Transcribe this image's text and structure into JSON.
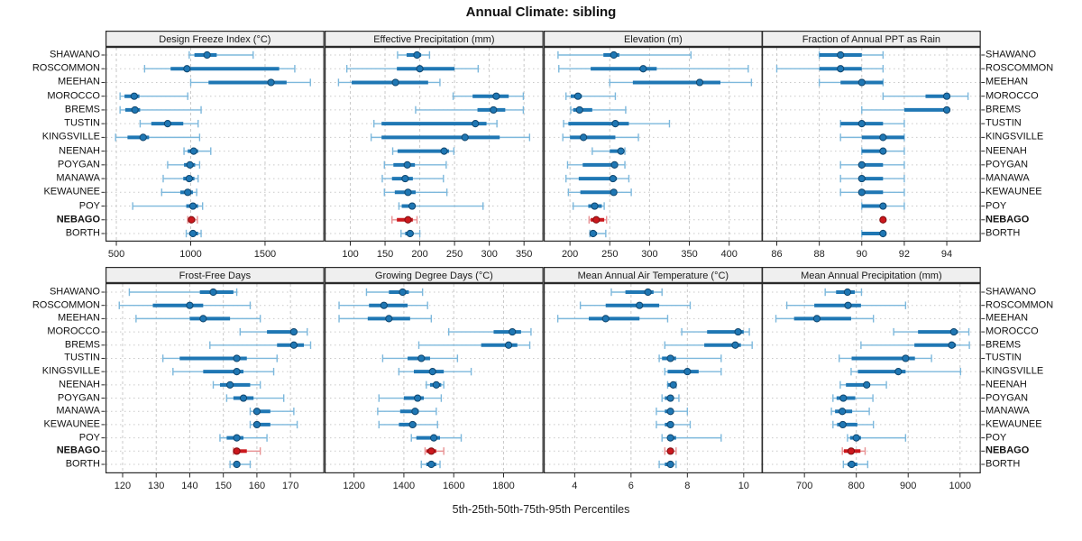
{
  "title": "Annual Climate: sibling",
  "caption": "5th-25th-50th-75th-95th Percentiles",
  "percentile_labels": [
    "5th",
    "25th",
    "50th",
    "75th",
    "95th"
  ],
  "sites": [
    "SHAWANO",
    "ROSCOMMON",
    "MEEHAN",
    "MOROCCO",
    "BREMS",
    "TUSTIN",
    "KINGSVILLE",
    "NEENAH",
    "POYGAN",
    "MANAWA",
    "KEWAUNEE",
    "POY",
    "NEBAGO",
    "BORTH"
  ],
  "highlight_site": "NEBAGO",
  "colors": {
    "series": "#1f77b4",
    "series_light": "#7db8dc",
    "series_dark": "#10466e",
    "highlight": "#cb181d",
    "highlight_light": "#e89193",
    "highlight_dark": "#7f0d10",
    "grid": "#c9c9c9",
    "border": "#2a2a2a",
    "strip_bg": "#efefef",
    "panel_bg": "#ffffff"
  },
  "chart_data": {
    "type": "dotplot-interval",
    "layout": {
      "rows": 2,
      "cols": 4
    },
    "note": "values per site are [p5,p25,p50,p75,p95]",
    "panels": [
      {
        "title": "Design Freeze Index (°C)",
        "ticks": [
          500,
          1000,
          1500
        ],
        "xlim": [
          427,
          1899
        ],
        "values": [
          [
            990,
            1025,
            1110,
            1175,
            1420
          ],
          [
            690,
            865,
            975,
            1595,
            1700
          ],
          [
            1000,
            1120,
            1540,
            1645,
            1805
          ],
          [
            525,
            555,
            620,
            655,
            980
          ],
          [
            525,
            560,
            625,
            660,
            1070
          ],
          [
            660,
            735,
            845,
            950,
            1050
          ],
          [
            495,
            575,
            680,
            720,
            1060
          ],
          [
            955,
            980,
            1020,
            1050,
            1135
          ],
          [
            845,
            955,
            995,
            1030,
            1060
          ],
          [
            815,
            950,
            990,
            1025,
            1050
          ],
          [
            805,
            930,
            980,
            1015,
            1040
          ],
          [
            610,
            970,
            1015,
            1050,
            1080
          ],
          [
            980,
            985,
            1005,
            1030,
            1045
          ],
          [
            970,
            990,
            1015,
            1050,
            1070
          ]
        ]
      },
      {
        "title": "Effective Precipitation (mm)",
        "ticks": [
          100,
          150,
          200,
          250,
          300,
          350
        ],
        "xlim": [
          63,
          378
        ],
        "values": [
          [
            168,
            181,
            196,
            202,
            214
          ],
          [
            95,
            167,
            200,
            250,
            284
          ],
          [
            83,
            102,
            165,
            212,
            229
          ],
          [
            248,
            276,
            310,
            328,
            349
          ],
          [
            194,
            283,
            306,
            323,
            349
          ],
          [
            134,
            145,
            280,
            296,
            311
          ],
          [
            130,
            145,
            265,
            315,
            358
          ],
          [
            161,
            168,
            235,
            242,
            249
          ],
          [
            149,
            162,
            182,
            193,
            238
          ],
          [
            146,
            160,
            179,
            190,
            234
          ],
          [
            149,
            164,
            183,
            194,
            239
          ],
          [
            170,
            174,
            189,
            191,
            291
          ],
          [
            160,
            167,
            183,
            190,
            196
          ],
          [
            173,
            179,
            186,
            191,
            200
          ]
        ]
      },
      {
        "title": "Elevation (m)",
        "ticks": [
          200,
          250,
          300,
          350,
          400
        ],
        "xlim": [
          167,
          442
        ],
        "values": [
          [
            185,
            242,
            255,
            262,
            352
          ],
          [
            186,
            226,
            292,
            309,
            424
          ],
          [
            250,
            279,
            363,
            389,
            428
          ],
          [
            195,
            201,
            210,
            215,
            257
          ],
          [
            201,
            204,
            212,
            228,
            270
          ],
          [
            192,
            198,
            257,
            274,
            325
          ],
          [
            191,
            200,
            217,
            257,
            286
          ],
          [
            228,
            250,
            264,
            268,
            269
          ],
          [
            197,
            216,
            256,
            260,
            269
          ],
          [
            195,
            211,
            254,
            259,
            274
          ],
          [
            198,
            213,
            255,
            259,
            277
          ],
          [
            204,
            223,
            231,
            240,
            243
          ],
          [
            224,
            226,
            233,
            243,
            246
          ],
          [
            225,
            226,
            229,
            234,
            245
          ]
        ]
      },
      {
        "title": "Fraction of Annual PPT as Rain",
        "ticks": [
          86,
          88,
          90,
          92,
          94
        ],
        "xlim": [
          85.3,
          95.6
        ],
        "values": [
          [
            88,
            88,
            89,
            90,
            91
          ],
          [
            86,
            88,
            89,
            90,
            91
          ],
          [
            88,
            89,
            90,
            91,
            91
          ],
          [
            91,
            93,
            94,
            94,
            95
          ],
          [
            90,
            92,
            94,
            94,
            94
          ],
          [
            89,
            89,
            90,
            91,
            92
          ],
          [
            89,
            90,
            91,
            92,
            92
          ],
          [
            90,
            90,
            91,
            91,
            92
          ],
          [
            89,
            90,
            90,
            91,
            92
          ],
          [
            89,
            90,
            90,
            91,
            92
          ],
          [
            89,
            90,
            90,
            91,
            92
          ],
          [
            90,
            90,
            91,
            91,
            92
          ],
          [
            91,
            91,
            91,
            91,
            91
          ],
          [
            90,
            90,
            91,
            91,
            91
          ]
        ]
      },
      {
        "title": "Frost-Free Days",
        "ticks": [
          120,
          130,
          140,
          150,
          160,
          170
        ],
        "xlim": [
          114.9,
          180.1
        ],
        "values": [
          [
            122,
            143,
            147,
            153,
            154
          ],
          [
            119,
            129,
            140,
            144,
            158
          ],
          [
            124,
            140,
            144,
            152,
            161
          ],
          [
            155,
            163,
            171,
            172,
            175
          ],
          [
            146,
            166,
            171,
            174,
            176
          ],
          [
            132,
            137,
            154,
            157,
            166
          ],
          [
            135,
            144,
            154,
            156,
            165
          ],
          [
            147,
            149,
            152,
            158,
            161
          ],
          [
            151,
            153,
            156,
            159,
            168
          ],
          [
            158,
            159,
            160,
            164,
            171
          ],
          [
            158,
            159,
            160,
            164,
            172
          ],
          [
            149,
            151,
            154,
            156,
            163
          ],
          [
            153,
            153,
            154,
            157,
            161
          ],
          [
            152,
            153,
            154,
            155,
            158
          ]
        ]
      },
      {
        "title": "Growing Degree Days (°C)",
        "ticks": [
          1200,
          1400,
          1600,
          1800
        ],
        "xlim": [
          1082,
          1960
        ],
        "values": [
          [
            1250,
            1340,
            1395,
            1420,
            1475
          ],
          [
            1140,
            1260,
            1320,
            1415,
            1495
          ],
          [
            1140,
            1255,
            1340,
            1425,
            1510
          ],
          [
            1580,
            1760,
            1835,
            1870,
            1910
          ],
          [
            1460,
            1710,
            1820,
            1855,
            1905
          ],
          [
            1315,
            1415,
            1470,
            1505,
            1615
          ],
          [
            1380,
            1440,
            1515,
            1560,
            1670
          ],
          [
            1490,
            1505,
            1530,
            1550,
            1560
          ],
          [
            1300,
            1400,
            1455,
            1480,
            1550
          ],
          [
            1295,
            1385,
            1445,
            1460,
            1530
          ],
          [
            1300,
            1380,
            1435,
            1450,
            1535
          ],
          [
            1430,
            1450,
            1520,
            1545,
            1630
          ],
          [
            1485,
            1490,
            1510,
            1530,
            1560
          ],
          [
            1470,
            1490,
            1510,
            1530,
            1545
          ]
        ]
      },
      {
        "title": "Mean Annual Air Temperature (°C)",
        "ticks": [
          4,
          6,
          8,
          10
        ],
        "xlim": [
          2.9,
          10.67
        ],
        "values": [
          [
            5.3,
            5.8,
            6.6,
            6.8,
            7.1
          ],
          [
            4.2,
            5.1,
            6.3,
            7.0,
            8.1
          ],
          [
            3.4,
            4.5,
            5.1,
            6.3,
            7.3
          ],
          [
            7.8,
            8.7,
            9.8,
            10.0,
            10.2
          ],
          [
            7.2,
            8.6,
            9.7,
            9.9,
            10.3
          ],
          [
            7.0,
            7.1,
            7.4,
            7.6,
            9.2
          ],
          [
            7.2,
            7.3,
            8.0,
            8.4,
            9.2
          ],
          [
            7.3,
            7.3,
            7.5,
            7.5,
            7.6
          ],
          [
            7.1,
            7.2,
            7.4,
            7.5,
            7.7
          ],
          [
            6.9,
            7.2,
            7.4,
            7.5,
            8.0
          ],
          [
            6.9,
            7.2,
            7.4,
            7.5,
            8.1
          ],
          [
            7.1,
            7.3,
            7.4,
            7.6,
            9.2
          ],
          [
            7.2,
            7.3,
            7.4,
            7.5,
            7.6
          ],
          [
            7.0,
            7.2,
            7.4,
            7.5,
            7.6
          ]
        ]
      },
      {
        "title": "Mean Annual Precipitation (mm)",
        "ticks": [
          700,
          800,
          900,
          1000
        ],
        "xlim": [
          618,
          1040
        ],
        "values": [
          [
            740,
            761,
            783,
            797,
            810
          ],
          [
            666,
            719,
            784,
            809,
            895
          ],
          [
            645,
            680,
            724,
            790,
            833
          ],
          [
            872,
            919,
            988,
            996,
            1017
          ],
          [
            809,
            912,
            984,
            992,
            1018
          ],
          [
            767,
            791,
            895,
            913,
            945
          ],
          [
            790,
            803,
            881,
            895,
            1001
          ],
          [
            769,
            780,
            820,
            826,
            858
          ],
          [
            755,
            762,
            775,
            798,
            832
          ],
          [
            752,
            759,
            773,
            792,
            825
          ],
          [
            755,
            763,
            774,
            802,
            833
          ],
          [
            783,
            788,
            800,
            809,
            895
          ],
          [
            773,
            776,
            790,
            808,
            817
          ],
          [
            775,
            783,
            791,
            802,
            822
          ]
        ]
      }
    ]
  }
}
